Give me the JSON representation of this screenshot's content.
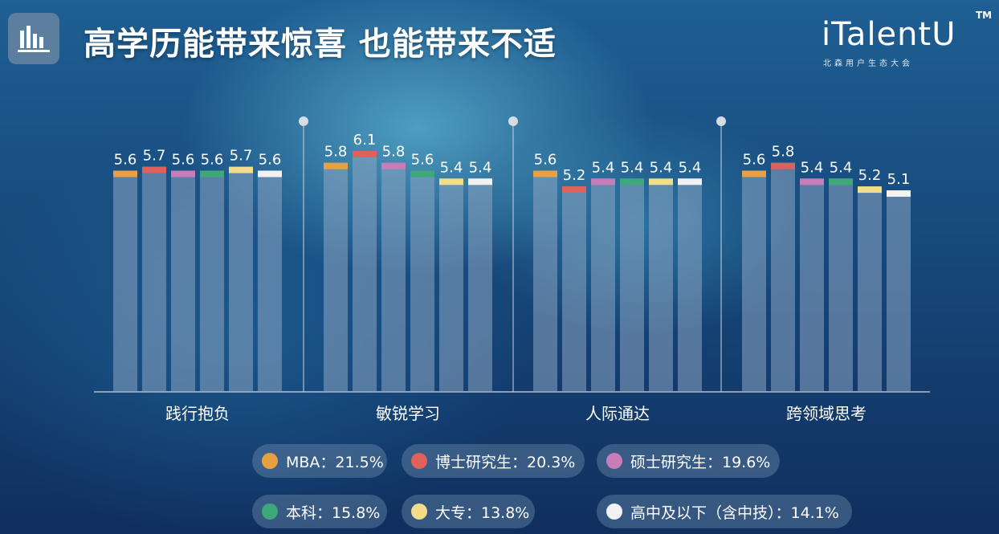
{
  "header": {
    "title": "高学历能带来惊喜 也能带来不适",
    "icon": "bar-chart-icon"
  },
  "logo": {
    "text": "iTalentU",
    "subtitle": "北森用户生态大会",
    "tm": "TM"
  },
  "chart_data": {
    "type": "bar",
    "categories": [
      "践行抱负",
      "敏锐学习",
      "人际通达",
      "跨领域思考"
    ],
    "series": [
      {
        "name": "MBA",
        "color": "#e8a040",
        "values": [
          5.6,
          5.8,
          5.6,
          5.6
        ]
      },
      {
        "name": "博士研究生",
        "color": "#e0605a",
        "values": [
          5.7,
          6.1,
          5.2,
          5.8
        ]
      },
      {
        "name": "硕士研究生",
        "color": "#c77db8",
        "values": [
          5.6,
          5.8,
          5.4,
          5.4
        ]
      },
      {
        "name": "本科",
        "color": "#3fa878",
        "values": [
          5.6,
          5.6,
          5.4,
          5.4
        ]
      },
      {
        "name": "大专",
        "color": "#f3dc8a",
        "values": [
          5.7,
          5.4,
          5.4,
          5.2
        ]
      },
      {
        "name": "高中及以下（含中技）",
        "color": "#f2f2f2",
        "values": [
          5.6,
          5.4,
          5.4,
          5.1
        ]
      }
    ],
    "value_labels": [
      [
        "5.6",
        "5.7",
        "5.6",
        "5.6",
        "5.7",
        "5.6"
      ],
      [
        "5.8",
        "6.1",
        "5.8",
        "5.6",
        "5.4",
        "5.4"
      ],
      [
        "5.6",
        "5.2",
        "5.4",
        "5.4",
        "5.4",
        "5.4"
      ],
      [
        "5.6",
        "5.8",
        "5.4",
        "5.4",
        "5.2",
        "5.1"
      ]
    ],
    "ylim": [
      0,
      6.1
    ],
    "grid": false,
    "legend_position": "bottom"
  },
  "legend": [
    {
      "label": "MBA：21.5%",
      "color": "#e8a040"
    },
    {
      "label": "博士研究生：20.3%",
      "color": "#e0605a"
    },
    {
      "label": "硕士研究生：19.6%",
      "color": "#c77db8"
    },
    {
      "label": "本科：15.8%",
      "color": "#3fa878"
    },
    {
      "label": "大专：13.8%",
      "color": "#f3dc8a"
    },
    {
      "label": "高中及以下（含中技）：14.1%",
      "color": "#f2f2f2"
    }
  ]
}
